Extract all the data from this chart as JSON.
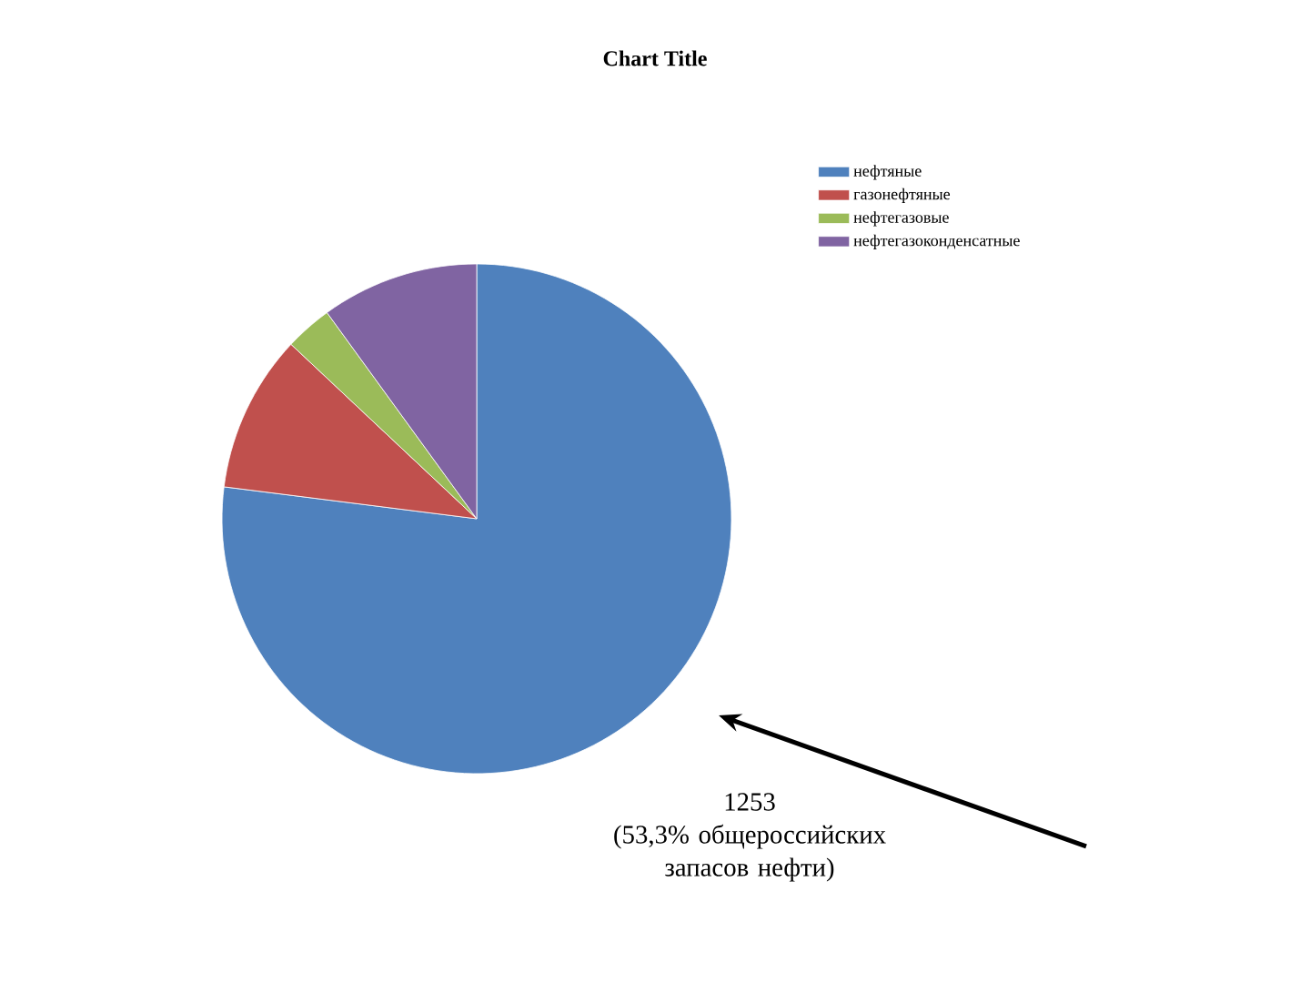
{
  "chart_data": {
    "type": "pie",
    "title": "Chart Title",
    "categories": [
      "нефтяные",
      "газонефтяные",
      "нефтегазовые",
      "нефтегазоконденсатные"
    ],
    "values": [
      77,
      10,
      3,
      10
    ],
    "colors": [
      "#4f81bd",
      "#c0504d",
      "#9bbb59",
      "#8064a2"
    ],
    "legend": "right",
    "annotations": [
      "1253\n(53,3% общероссийских\nзапасов нефти)"
    ]
  }
}
